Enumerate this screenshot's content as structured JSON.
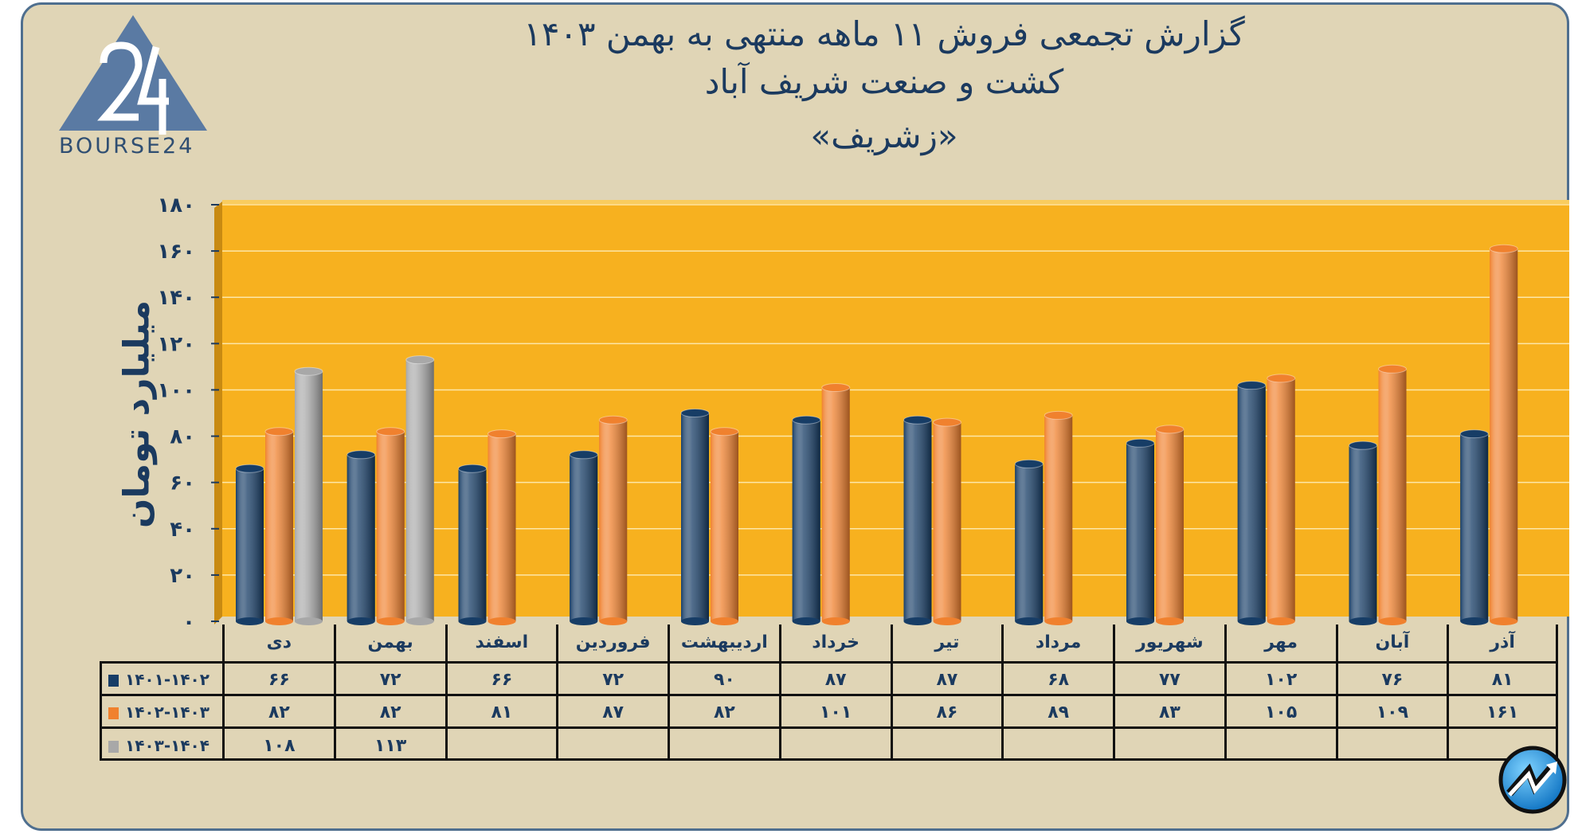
{
  "title": {
    "line1": "گزارش تجمعی فروش ۱۱ ماهه منتهی به بهمن ۱۴۰۳",
    "line2": "کشت و صنعت شریف آباد",
    "line3": "«زشریف»"
  },
  "logo": {
    "text": "BOURSE24",
    "mark": "24"
  },
  "badge": {
    "icon": "trend-arrow-icon"
  },
  "colors": {
    "panel_bg": "#e0d5b6",
    "plot_bg": "#f7b11f",
    "text": "#1b3a5f",
    "series": [
      "#173d66",
      "#f0812e",
      "#a8a8a8"
    ]
  },
  "chart_data": {
    "type": "bar",
    "title": "گزارش تجمعی فروش ۱۱ ماهه منتهی به بهمن ۱۴۰۳",
    "xlabel": "",
    "ylabel": "میلیارد تومان",
    "ylim": [
      0,
      180
    ],
    "yticks": [
      0,
      20,
      40,
      60,
      80,
      100,
      120,
      140,
      160,
      180
    ],
    "grid": true,
    "legend": "table-left",
    "categories": [
      "دی",
      "بهمن",
      "اسفند",
      "فروردین",
      "اردیبهشت",
      "خرداد",
      "تیر",
      "مرداد",
      "شهریور",
      "مهر",
      "آبان",
      "آذر"
    ],
    "series": [
      {
        "name": "۱۴۰۱-۱۴۰۲",
        "values": [
          66,
          72,
          66,
          72,
          90,
          87,
          87,
          68,
          77,
          102,
          76,
          81
        ]
      },
      {
        "name": "۱۴۰۲-۱۴۰۳",
        "values": [
          82,
          82,
          81,
          87,
          82,
          101,
          86,
          89,
          83,
          105,
          109,
          161
        ]
      },
      {
        "name": "۱۴۰۳-۱۴۰۴",
        "values": [
          108,
          113,
          null,
          null,
          null,
          null,
          null,
          null,
          null,
          null,
          null,
          null
        ]
      }
    ]
  }
}
